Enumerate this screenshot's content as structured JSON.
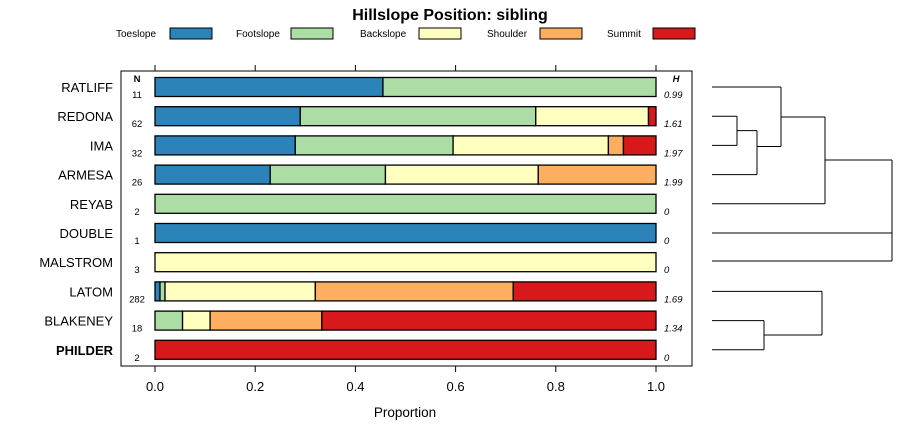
{
  "chart_data": {
    "type": "bar",
    "stacked": true,
    "orientation": "horizontal",
    "title": "Hillslope Position: sibling",
    "xlabel": "Proportion",
    "xlim": [
      0,
      1
    ],
    "x_ticks": [
      "0.0",
      "0.2",
      "0.4",
      "0.6",
      "0.8",
      "1.0"
    ],
    "x_tick_values": [
      0,
      0.2,
      0.4,
      0.6,
      0.8,
      1.0
    ],
    "n_header": "N",
    "h_header": "H",
    "categories": [
      "RATLIFF",
      "REDONA",
      "IMA",
      "ARMESA",
      "REYAB",
      "DOUBLE",
      "MALSTROM",
      "LATOM",
      "BLAKENEY",
      "PHILDER"
    ],
    "bold_category": "PHILDER",
    "n": [
      "11",
      "62",
      "32",
      "26",
      "2",
      "1",
      "3",
      "282",
      "18",
      "2"
    ],
    "h": [
      "0.99",
      "1.61",
      "1.97",
      "1.99",
      "0",
      "0",
      "0",
      "1.69",
      "1.34",
      "0"
    ],
    "series": [
      {
        "name": "Toeslope",
        "color": "#2b83ba",
        "values": [
          0.455,
          0.29,
          0.28,
          0.23,
          0,
          1,
          0,
          0.01,
          0,
          0
        ]
      },
      {
        "name": "Footslope",
        "color": "#abdda4",
        "values": [
          0.545,
          0.47,
          0.315,
          0.23,
          1,
          0,
          0,
          0.01,
          0.055,
          0
        ]
      },
      {
        "name": "Backslope",
        "color": "#ffffbf",
        "values": [
          0,
          0.225,
          0.31,
          0.305,
          0,
          0,
          1,
          0.3,
          0.055,
          0
        ]
      },
      {
        "name": "Shoulder",
        "color": "#fdae61",
        "values": [
          0,
          0,
          0.03,
          0.235,
          0,
          0,
          0,
          0.395,
          0.223,
          0
        ]
      },
      {
        "name": "Summit",
        "color": "#d7191c",
        "values": [
          0,
          0.015,
          0.065,
          0,
          0,
          0,
          0,
          0.285,
          0.667,
          1
        ]
      }
    ]
  }
}
